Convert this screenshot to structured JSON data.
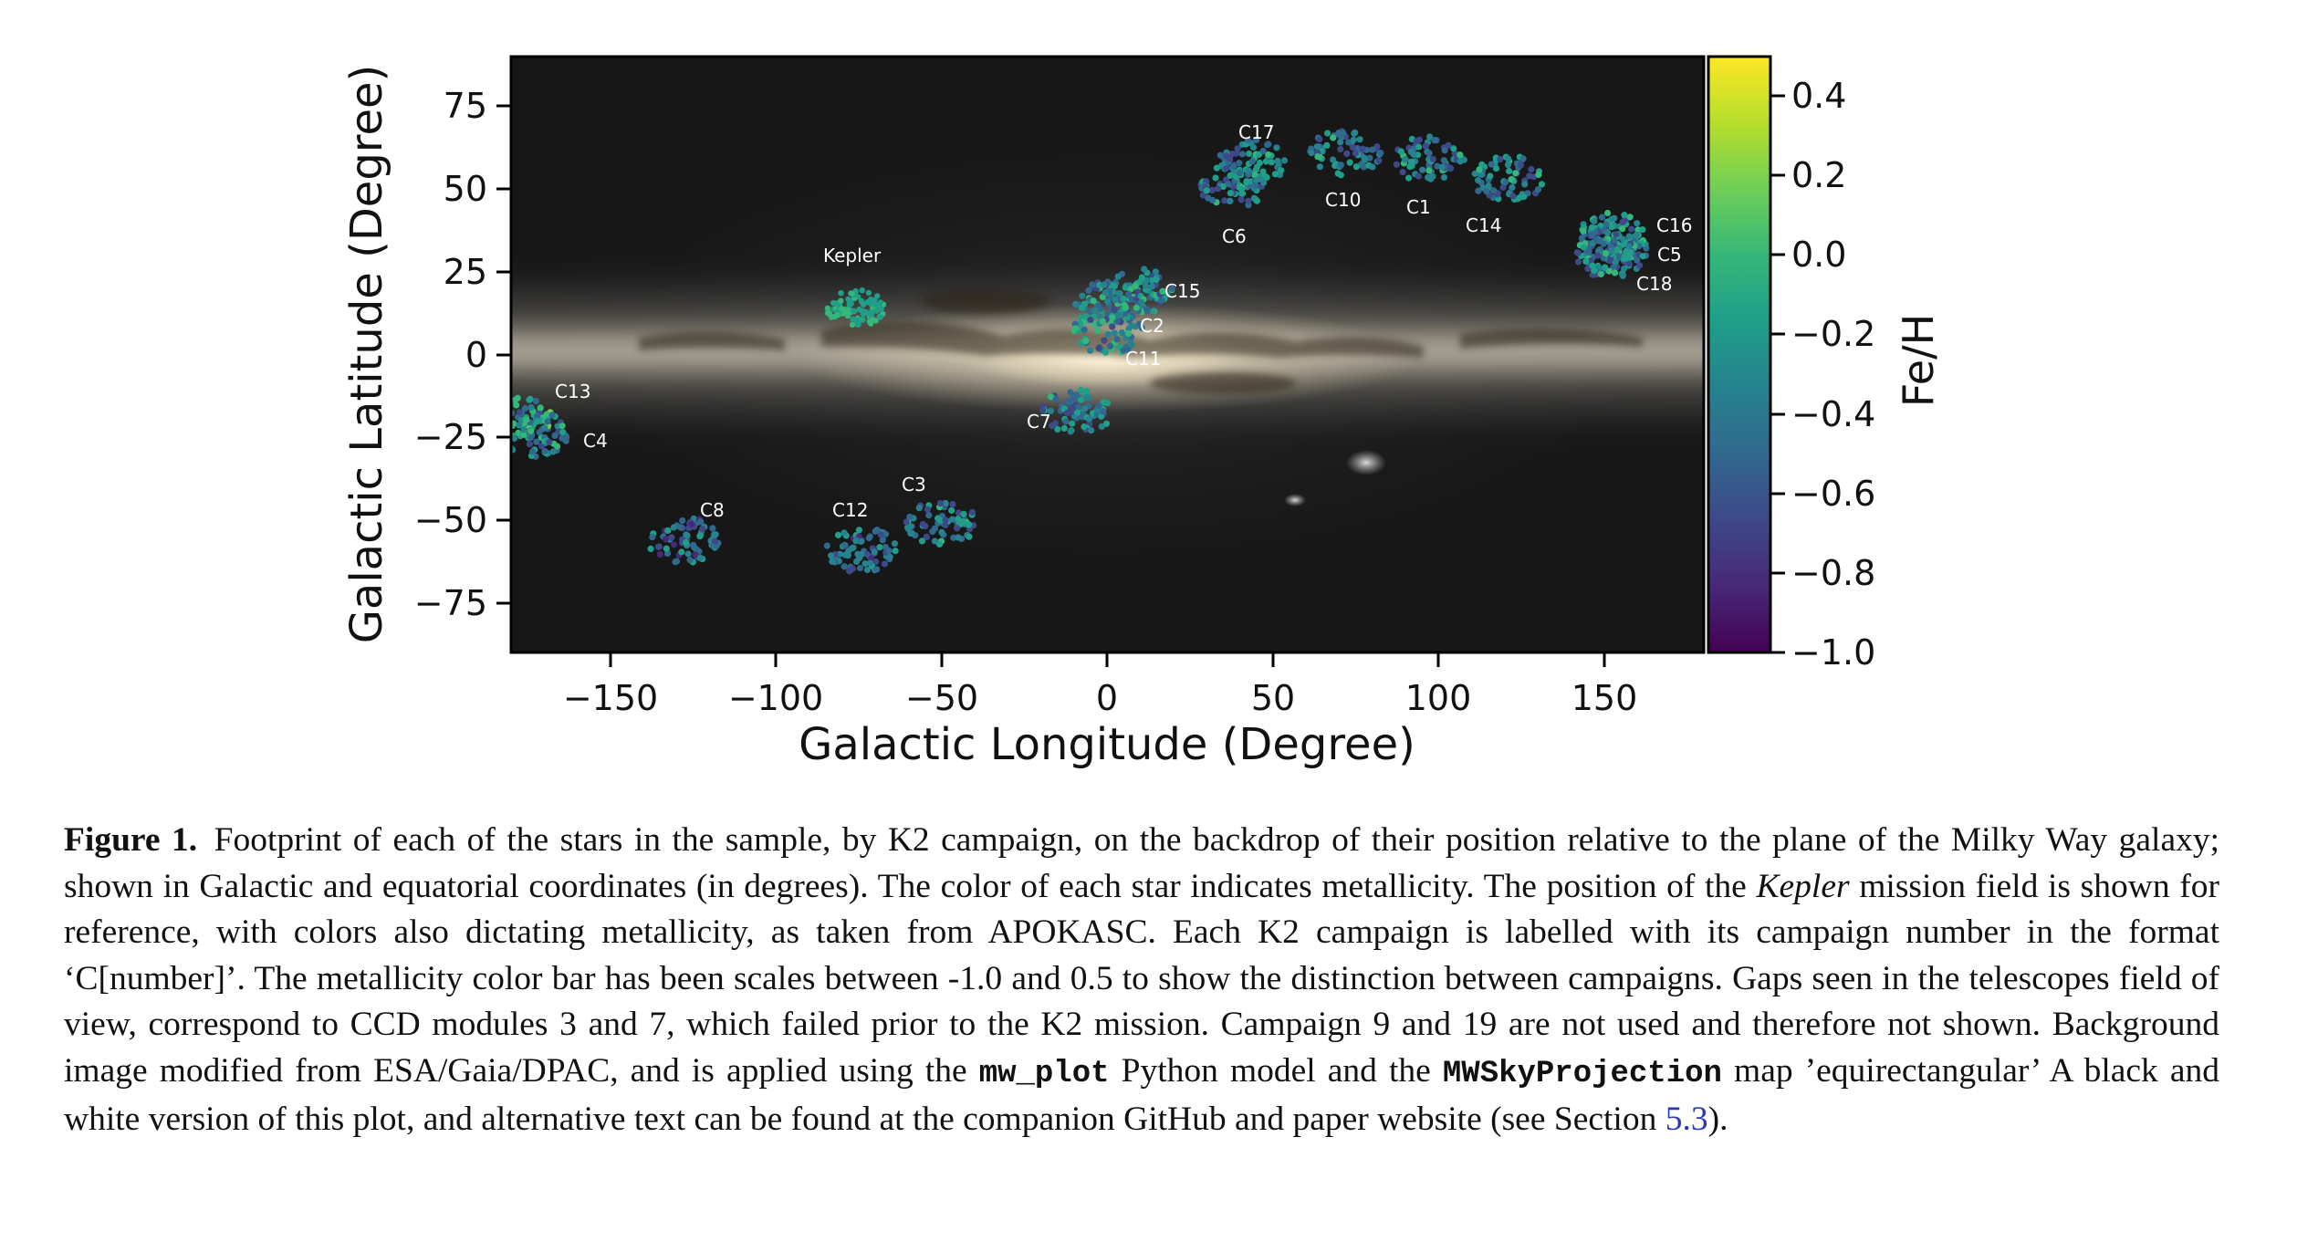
{
  "chart_data": {
    "type": "scatter",
    "xlabel": "Galactic Longitude (Degree)",
    "ylabel": "Galactic Latitude (Degree)",
    "xlim": [
      -180,
      180
    ],
    "ylim": [
      -90,
      90
    ],
    "xticks": [
      -150,
      -100,
      -50,
      0,
      50,
      100,
      150
    ],
    "yticks": [
      75,
      50,
      25,
      0,
      -25,
      -50,
      -75
    ],
    "xtick_labels": [
      "−150",
      "−100",
      "−50",
      "0",
      "50",
      "100",
      "150"
    ],
    "ytick_labels": [
      "75",
      "50",
      "25",
      "0",
      "−25",
      "−50",
      "−75"
    ],
    "colorbar": {
      "label": "Fe/H",
      "range": [
        -1.0,
        0.5
      ],
      "ticks": [
        0.4,
        0.2,
        0.0,
        -0.2,
        -0.4,
        -0.6,
        -0.8,
        -1.0
      ],
      "tick_labels": [
        "0.4",
        "0.2",
        "0.0",
        "−0.2",
        "−0.4",
        "−0.6",
        "−0.8",
        "−1.0"
      ],
      "colormap": "viridis",
      "colors": [
        "#440154",
        "#482878",
        "#3e4989",
        "#31688e",
        "#26828e",
        "#1f9e89",
        "#35b779",
        "#6ece58",
        "#b5de2b",
        "#fde725"
      ]
    },
    "background": "Milky Way all-sky image",
    "fields": [
      {
        "name": "Kepler",
        "l": -76,
        "b": 14,
        "feh": -0.1
      },
      {
        "name": "C1",
        "l": 97,
        "b": 59,
        "feh": -0.35
      },
      {
        "name": "C2",
        "l": 0,
        "b": 15,
        "feh": -0.3
      },
      {
        "name": "C3",
        "l": -50,
        "b": -51,
        "feh": -0.4
      },
      {
        "name": "C4",
        "l": -173,
        "b": -24,
        "feh": -0.3
      },
      {
        "name": "C5",
        "l": 152,
        "b": 33,
        "feh": -0.35
      },
      {
        "name": "C6",
        "l": 38,
        "b": 51,
        "feh": -0.4
      },
      {
        "name": "C7",
        "l": -9,
        "b": -17,
        "feh": -0.4
      },
      {
        "name": "C8",
        "l": -128,
        "b": -56,
        "feh": -0.45
      },
      {
        "name": "C10",
        "l": 72,
        "b": 61,
        "feh": -0.4
      },
      {
        "name": "C11",
        "l": 0,
        "b": 7,
        "feh": -0.3
      },
      {
        "name": "C12",
        "l": -74,
        "b": -59,
        "feh": -0.45
      },
      {
        "name": "C13",
        "l": -178,
        "b": -19,
        "feh": -0.25
      },
      {
        "name": "C14",
        "l": 121,
        "b": 53,
        "feh": -0.35
      },
      {
        "name": "C15",
        "l": 9,
        "b": 19,
        "feh": -0.35
      },
      {
        "name": "C16",
        "l": 152,
        "b": 36,
        "feh": -0.35
      },
      {
        "name": "C17",
        "l": 43,
        "b": 58,
        "feh": -0.4
      },
      {
        "name": "C18",
        "l": 152,
        "b": 30,
        "feh": -0.35
      }
    ]
  },
  "caption": {
    "label": "Figure 1.",
    "text_1": "Footprint of each of the stars in the sample, by K2 campaign, on the backdrop of their position relative to the plane of the Milky Way galaxy; shown in Galactic and equatorial coordinates (in degrees). The color of each star indicates metallicity. The position of the ",
    "kepler_italic": "Kepler",
    "text_2": " mission field is shown for reference, with colors also dictating metallicity, as taken from APOKASC. Each K2 campaign is labelled with its campaign number in the format ‘C[number]’. The metallicity color bar has been scales between -1.0 and 0.5 to show the distinction between campaigns. Gaps seen in the telescopes field of view, correspond to CCD modules 3 and 7, which failed prior to the K2 mission. Campaign 9 and 19 are not used and therefore not shown. Background image modified from ESA/Gaia/DPAC, and is applied using the ",
    "code_1": "mw_plot",
    "text_3": " Python model and the ",
    "code_2": "MWSkyProjection",
    "text_4": " map ’equirectangular’ A black and white version of this plot, and alternative text can be found at the companion GitHub and paper website (see Section ",
    "section_ref": "5.3",
    "text_5": ")."
  }
}
